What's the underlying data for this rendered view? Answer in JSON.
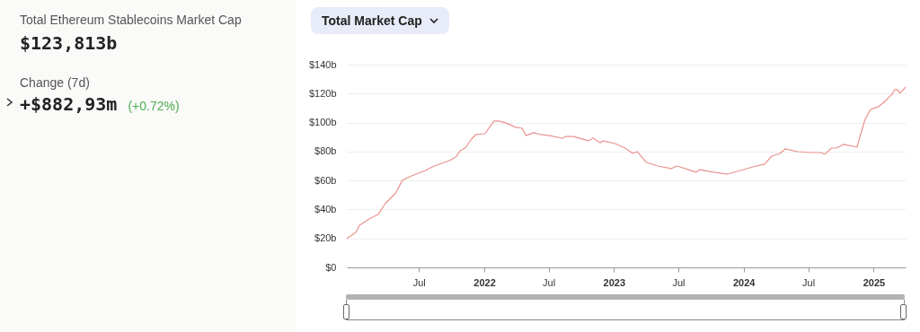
{
  "chart_data": [
    {
      "type": "other",
      "title": "Total Ethereum Stablecoins Market Cap",
      "annotations": [
        "$123,813b",
        "Change (7d)",
        "+$882,93m",
        "(+0.72%)"
      ]
    },
    {
      "type": "line",
      "annotations": [
        "Total Market Cap"
      ],
      "x": [
        "2020-12-10",
        "2021-01-05",
        "2021-01-14",
        "2021-02-12",
        "2021-03-08",
        "2021-03-28",
        "2021-04-27",
        "2021-05-15",
        "2021-06-04",
        "2021-07-19",
        "2021-08-13",
        "2021-09-25",
        "2021-10-13",
        "2021-10-25",
        "2021-11-08",
        "2021-11-26",
        "2021-12-09",
        "2022-01-03",
        "2022-01-28",
        "2022-02-10",
        "2022-03-02",
        "2022-03-31",
        "2022-04-18",
        "2022-04-28",
        "2022-05-20",
        "2022-06-09",
        "2022-07-04",
        "2022-08-08",
        "2022-08-20",
        "2022-09-09",
        "2022-10-21",
        "2022-11-03",
        "2022-11-23",
        "2022-12-01",
        "2023-01-04",
        "2023-02-01",
        "2023-02-23",
        "2023-03-08",
        "2023-04-02",
        "2023-05-05",
        "2023-06-11",
        "2023-06-28",
        "2023-08-20",
        "2023-08-30",
        "2023-10-09",
        "2023-11-16",
        "2023-12-23",
        "2024-01-27",
        "2024-02-29",
        "2024-03-20",
        "2024-04-12",
        "2024-04-27",
        "2024-06-01",
        "2024-07-12",
        "2024-08-06",
        "2024-08-16",
        "2024-09-05",
        "2024-09-18",
        "2024-10-08",
        "2024-11-15",
        "2024-12-07",
        "2024-12-23",
        "2025-01-15",
        "2025-01-30",
        "2025-02-22",
        "2025-03-01",
        "2025-03-09",
        "2025-03-16",
        "2025-04-01"
      ],
      "series": [
        {
          "color": "#e8938e",
          "values": [
            19.8,
            24.3,
            29,
            33.6,
            36.5,
            44,
            51.4,
            60,
            62.6,
            66.9,
            70,
            73.7,
            76.2,
            80.5,
            82.4,
            88.6,
            91.7,
            92.3,
            101,
            101,
            99.8,
            96.7,
            96,
            91,
            93,
            91.7,
            91,
            89.2,
            90.4,
            90.4,
            87.4,
            89.3,
            86,
            87.4,
            85.5,
            82.4,
            78.7,
            79.9,
            72.5,
            70,
            68.2,
            70,
            65.7,
            67.5,
            65.7,
            64.4,
            66.9,
            69.4,
            71.3,
            76.8,
            78.7,
            81.8,
            79.9,
            79.3,
            79.3,
            78.1,
            82.4,
            82.4,
            84.9,
            83,
            101.6,
            109,
            111,
            114,
            119.6,
            122.7,
            122.7,
            120.2,
            124.5
          ]
        }
      ],
      "xlim": [
        "2020-12-10",
        "2025-04-01"
      ],
      "xticks": [
        {
          "value": "2021-07-01",
          "label": "Jul"
        },
        {
          "value": "2022-01-01",
          "label": "2022"
        },
        {
          "value": "2022-07-01",
          "label": "Jul"
        },
        {
          "value": "2023-01-01",
          "label": "2023"
        },
        {
          "value": "2023-07-01",
          "label": "Jul"
        },
        {
          "value": "2024-01-01",
          "label": "2024"
        },
        {
          "value": "2024-07-01",
          "label": "Jul"
        },
        {
          "value": "2025-01-01",
          "label": "2025"
        }
      ],
      "ylim": [
        0,
        140
      ],
      "yticks": [
        {
          "value": 0,
          "label": "$0"
        },
        {
          "value": 20,
          "label": "$20b"
        },
        {
          "value": 40,
          "label": "$40b"
        },
        {
          "value": 60,
          "label": "$60b"
        },
        {
          "value": 80,
          "label": "$80b"
        },
        {
          "value": 100,
          "label": "$100b"
        },
        {
          "value": 120,
          "label": "$120b"
        },
        {
          "value": 140,
          "label": "$140b"
        }
      ],
      "grid": "y",
      "marker": "none",
      "line_style": "solid",
      "legend": false
    }
  ]
}
